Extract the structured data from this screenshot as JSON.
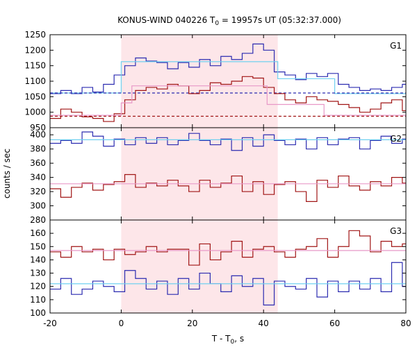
{
  "chart_data": {
    "type": "line",
    "title": "KONUS-WIND 040226 T",
    "title_sub": "0",
    "title_rest": " = 19957s UT (05:32:37.000)",
    "xlabel": "T - T",
    "xlabel_sub": "0",
    "xlabel_rest": ", s",
    "ylabel": "counts / sec",
    "xlim": [
      -20,
      80
    ],
    "x_ticks": [
      "-20",
      "0",
      "20",
      "40",
      "60",
      "80"
    ],
    "x_tick_values": [
      -20,
      0,
      20,
      40,
      60,
      80
    ],
    "shaded_interval": [
      0,
      44
    ],
    "shade_color": "#fde6e9",
    "colors": {
      "blue": "#2b2bb0",
      "red": "#a01414",
      "cyan": "#6fd0f0",
      "pink": "#e898c8"
    },
    "panels": [
      {
        "label": "G1",
        "ylim": [
          950,
          1250
        ],
        "y_ticks": [
          950,
          1000,
          1050,
          1100,
          1150,
          1200,
          1250
        ],
        "y_tick_labels": [
          "950",
          "1000",
          "1050",
          "1100",
          "1150",
          "1200",
          "1250"
        ],
        "x_edges": [
          -20,
          -17,
          -14,
          -11,
          -8,
          -5,
          -2,
          1,
          4,
          7,
          10,
          13,
          16,
          19,
          22,
          25,
          28,
          31,
          34,
          37,
          40,
          43,
          46,
          49,
          52,
          55,
          58,
          61,
          64,
          67,
          70,
          73,
          76,
          79,
          80
        ],
        "series": [
          {
            "name": "G1 counts",
            "color": "blue",
            "values": [
              1060,
              1070,
              1060,
              1080,
              1065,
              1090,
              1120,
              1150,
              1175,
              1165,
              1160,
              1140,
              1160,
              1145,
              1170,
              1150,
              1180,
              1170,
              1190,
              1220,
              1200,
              1130,
              1120,
              1105,
              1125,
              1115,
              1125,
              1090,
              1080,
              1070,
              1075,
              1070,
              1080,
              1090
            ]
          },
          {
            "name": "G1 model",
            "color": "cyan",
            "step": [
              [
                -20,
                1062
              ],
              [
                0,
                1062
              ],
              [
                0,
                1163
              ],
              [
                44,
                1163
              ],
              [
                44,
                1108
              ],
              [
                60,
                1108
              ],
              [
                60,
                1060
              ],
              [
                80,
                1060
              ]
            ]
          },
          {
            "name": "G1 background",
            "color": "blue",
            "dashed": true,
            "level": 1062
          },
          {
            "name": "G1 hardness",
            "color": "red",
            "values": [
              980,
              1010,
              1000,
              985,
              980,
              970,
              995,
              1040,
              1070,
              1080,
              1075,
              1090,
              1085,
              1060,
              1070,
              1095,
              1090,
              1100,
              1115,
              1110,
              1080,
              1060,
              1040,
              1030,
              1050,
              1040,
              1035,
              1025,
              1015,
              1000,
              1010,
              1030,
              1040,
              1005
            ]
          },
          {
            "name": "G1 hardness model",
            "color": "pink",
            "step": [
              [
                -20,
                990
              ],
              [
                0,
                990
              ],
              [
                0,
                1030
              ],
              [
                3,
                1030
              ],
              [
                3,
                1085
              ],
              [
                41,
                1085
              ],
              [
                41,
                1025
              ],
              [
                57,
                1025
              ],
              [
                57,
                990
              ],
              [
                80,
                990
              ]
            ]
          },
          {
            "name": "G1 hardness background",
            "color": "red",
            "dashed": true,
            "level": 987
          }
        ]
      },
      {
        "label": "G2",
        "ylim": [
          280,
          410
        ],
        "y_ticks": [
          280,
          300,
          320,
          340,
          360,
          380,
          400
        ],
        "y_tick_labels": [
          "280",
          "300",
          "320",
          "340",
          "360",
          "380",
          "400"
        ],
        "x_edges": [
          -20,
          -17,
          -14,
          -11,
          -8,
          -5,
          -2,
          1,
          4,
          7,
          10,
          13,
          16,
          19,
          22,
          25,
          28,
          31,
          34,
          37,
          40,
          43,
          46,
          49,
          52,
          55,
          58,
          61,
          64,
          67,
          70,
          73,
          76,
          79,
          80
        ],
        "series": [
          {
            "name": "G2 counts",
            "color": "blue",
            "values": [
              388,
              392,
              388,
              404,
              398,
              384,
              394,
              386,
              396,
              388,
              396,
              386,
              392,
              402,
              392,
              386,
              394,
              378,
              396,
              384,
              400,
              392,
              386,
              394,
              380,
              396,
              386,
              394,
              396,
              380,
              392,
              398,
              388,
              394
            ]
          },
          {
            "name": "G2 model",
            "color": "cyan",
            "level": 393
          },
          {
            "name": "G2 hardness",
            "color": "red",
            "values": [
              324,
              312,
              326,
              332,
              322,
              330,
              334,
              344,
              326,
              332,
              328,
              336,
              328,
              320,
              336,
              326,
              332,
              342,
              320,
              334,
              316,
              330,
              334,
              320,
              306,
              336,
              326,
              342,
              328,
              322,
              334,
              328,
              340,
              332
            ]
          },
          {
            "name": "G2 model",
            "color": "pink",
            "level": 331
          }
        ]
      },
      {
        "label": "G3",
        "ylim": [
          100,
          170
        ],
        "y_ticks": [
          100,
          110,
          120,
          130,
          140,
          150,
          160
        ],
        "y_tick_labels": [
          "100",
          "110",
          "120",
          "130",
          "140",
          "150",
          "160"
        ],
        "x_edges": [
          -20,
          -17,
          -14,
          -11,
          -8,
          -5,
          -2,
          1,
          4,
          7,
          10,
          13,
          16,
          19,
          22,
          25,
          28,
          31,
          34,
          37,
          40,
          43,
          46,
          49,
          52,
          55,
          58,
          61,
          64,
          67,
          70,
          73,
          76,
          79,
          80
        ],
        "series": [
          {
            "name": "G3 counts",
            "color": "blue",
            "values": [
              118,
              126,
              114,
              118,
              124,
              120,
              116,
              132,
              126,
              118,
              124,
              114,
              126,
              118,
              130,
              122,
              116,
              128,
              120,
              126,
              106,
              124,
              120,
              118,
              126,
              112,
              124,
              116,
              124,
              118,
              126,
              116,
              138,
              120
            ]
          },
          {
            "name": "G3 model",
            "color": "cyan",
            "level": 122
          },
          {
            "name": "G3 hardness",
            "color": "red",
            "values": [
              146,
              142,
              150,
              146,
              148,
              140,
              148,
              144,
              146,
              150,
              146,
              148,
              148,
              136,
              152,
              140,
              146,
              154,
              142,
              148,
              150,
              146,
              142,
              148,
              150,
              156,
              142,
              150,
              162,
              158,
              146,
              154,
              150,
              152
            ]
          },
          {
            "name": "G3 model",
            "color": "pink",
            "level": 147
          }
        ]
      }
    ]
  }
}
